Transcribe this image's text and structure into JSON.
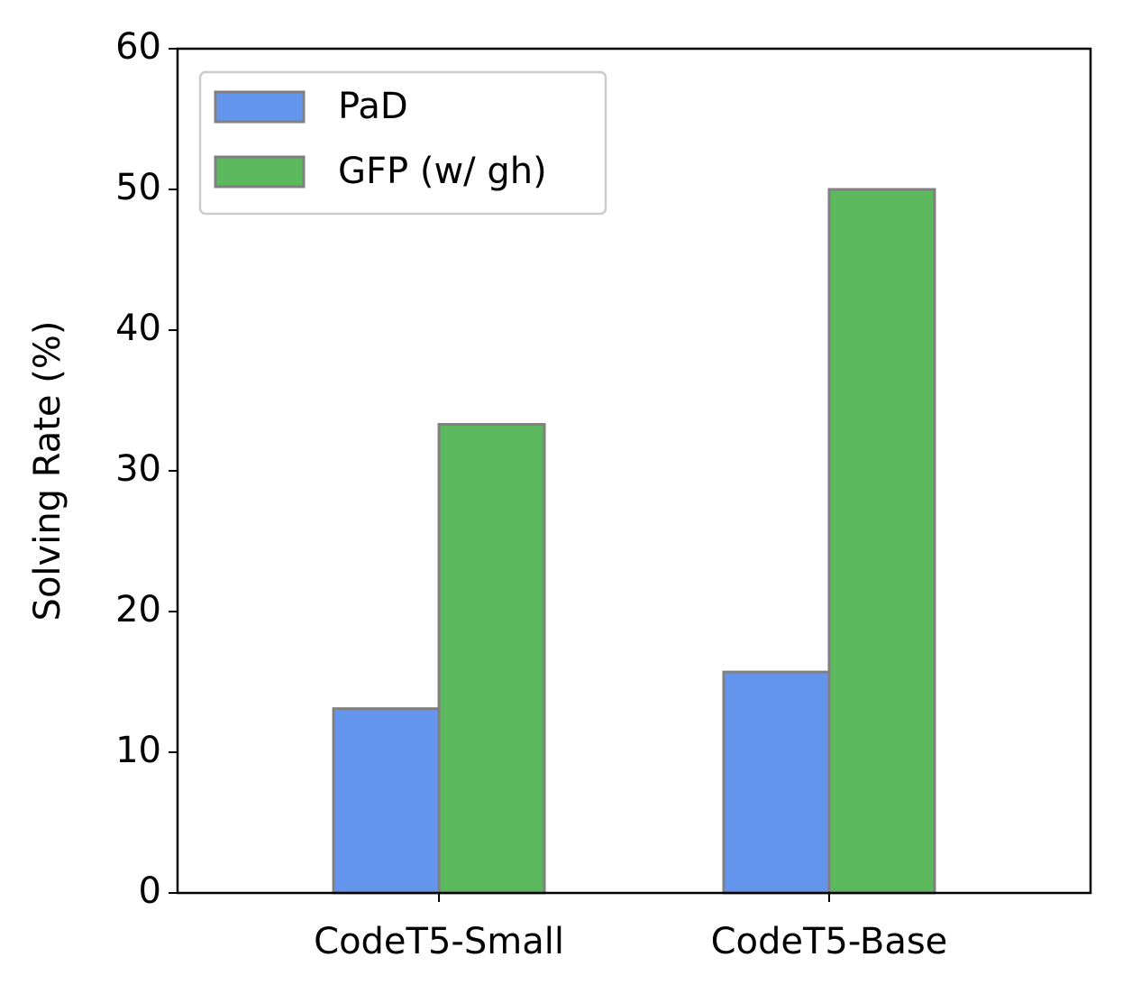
{
  "chart_data": {
    "type": "bar",
    "y_label": "Solving Rate (%)",
    "categories": [
      "CodeT5-Small",
      "CodeT5-Base"
    ],
    "series": [
      {
        "name": "PaD",
        "color": "#6495ed",
        "values": [
          13.1,
          15.7
        ]
      },
      {
        "name": "GFP (w/ gh)",
        "color": "#5cb85c",
        "values": [
          33.3,
          50.0
        ]
      }
    ],
    "ylim": [
      0,
      60
    ],
    "yticks": [
      0,
      10,
      20,
      30,
      40,
      50,
      60
    ],
    "legend": "upper left",
    "edge_color": "#808080"
  }
}
